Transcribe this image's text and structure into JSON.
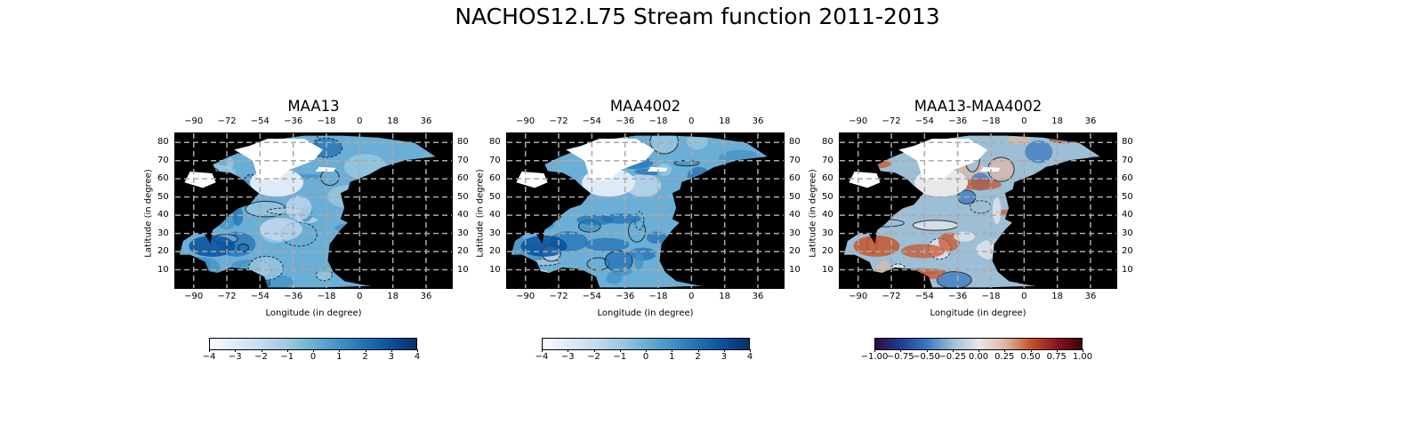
{
  "figure": {
    "title": "NACHOS12.L75 Stream function 2011-2013"
  },
  "panels": [
    {
      "title": "MAA13",
      "xlabel": "Longitude (in degree)",
      "ylabel": "Latitude (in degree)",
      "lon_ticks": [
        "−90",
        "−72",
        "−54",
        "−36",
        "−18",
        "0",
        "18",
        "36"
      ],
      "lat_ticks": [
        "80",
        "70",
        "60",
        "50",
        "40",
        "30",
        "20",
        "10"
      ],
      "colormap": "Blues",
      "cbar_ticks": [
        "−4",
        "−3",
        "−2",
        "−1",
        "0",
        "1",
        "2",
        "3",
        "4"
      ]
    },
    {
      "title": "MAA4002",
      "xlabel": "Longitude (in degree)",
      "ylabel": "Latitude (in degree)",
      "lon_ticks": [
        "−90",
        "−72",
        "−54",
        "−36",
        "−18",
        "0",
        "18",
        "36"
      ],
      "lat_ticks": [
        "80",
        "70",
        "60",
        "50",
        "40",
        "30",
        "20",
        "10"
      ],
      "colormap": "Blues",
      "cbar_ticks": [
        "−4",
        "−3",
        "−2",
        "−1",
        "0",
        "1",
        "2",
        "3",
        "4"
      ]
    },
    {
      "title": "MAA13-MAA4002",
      "xlabel": "Longitude (in degree)",
      "ylabel": "Latitude (in degree)",
      "lon_ticks": [
        "−90",
        "−72",
        "−54",
        "−36",
        "−18",
        "0",
        "18",
        "36"
      ],
      "lat_ticks": [
        "80",
        "70",
        "60",
        "50",
        "40",
        "30",
        "20",
        "10"
      ],
      "colormap": "RdBu_r",
      "cbar_ticks": [
        "−1.00",
        "−0.75",
        "−0.50",
        "−0.25",
        "0.00",
        "0.25",
        "0.50",
        "0.75",
        "1.00"
      ]
    }
  ],
  "colors": {
    "land": "#000000",
    "blues": [
      "#f7fbff",
      "#deebf7",
      "#c6dbef",
      "#9ecae1",
      "#6baed6",
      "#4292c6",
      "#2171b5",
      "#08519c",
      "#08306b"
    ],
    "diverging": [
      "#2b0b3f",
      "#1f3f99",
      "#3a78c2",
      "#9dbfd6",
      "#e8e8e8",
      "#e0b8a8",
      "#c8562c",
      "#8e1420",
      "#3d0008"
    ]
  },
  "chart_data": {
    "type": "heatmap",
    "title": "NACHOS12.L75 Stream function 2011-2013",
    "subplots": [
      "MAA13",
      "MAA4002",
      "MAA13-MAA4002"
    ],
    "xlabel": "Longitude (in degree)",
    "ylabel": "Latitude (in degree)",
    "xlim": [
      -100,
      50
    ],
    "ylim": [
      0,
      85
    ],
    "grid": true,
    "colorbar_ranges": [
      [
        -4,
        4
      ],
      [
        -4,
        4
      ],
      [
        -1,
        1
      ]
    ]
  }
}
